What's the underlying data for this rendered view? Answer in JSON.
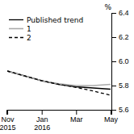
{
  "chart_data": {
    "type": "line",
    "ylabel": "%",
    "categories": [
      "Nov\n2015",
      null,
      "Jan\n2016",
      null,
      "Mar",
      null,
      "May"
    ],
    "series": [
      {
        "name": "Published trend",
        "color": "#000000",
        "line_style": "solid",
        "values": [
          5.92,
          5.88,
          5.84,
          5.81,
          5.79,
          5.78,
          5.77
        ]
      },
      {
        "name": "1",
        "color": "#aaaaaa",
        "line_style": "solid",
        "values": [
          5.92,
          5.88,
          5.84,
          5.815,
          5.8,
          5.8,
          5.81
        ]
      },
      {
        "name": "2",
        "color": "#000000",
        "line_style": "dashed",
        "values": [
          5.92,
          5.88,
          5.84,
          5.81,
          5.785,
          5.755,
          5.72
        ]
      }
    ],
    "ylim": [
      5.6,
      6.4
    ],
    "yticks": [
      5.6,
      5.8,
      {
        "value": 6.0,
        "label": "6.0"
      },
      6.2,
      6.4
    ],
    "grid": false,
    "legend": "upper left"
  }
}
